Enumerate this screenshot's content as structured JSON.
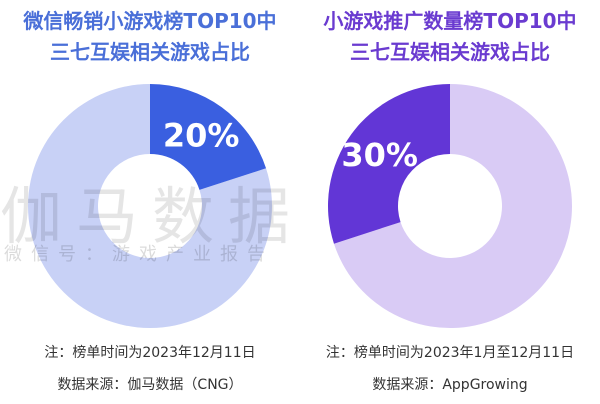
{
  "charts": [
    {
      "title_lines": [
        "微信畅销小游戏榜TOP10中",
        "三七互娱相关游戏占比"
      ],
      "title_color": "#4a6fd8",
      "note": "注：榜单时间为2023年12月11日",
      "source": "数据来源：伽马数据（CNG）",
      "value_label": "20%",
      "colors": {
        "highlight": "#3a5fe0",
        "rest": "#c8d1f6"
      }
    },
    {
      "title_lines": [
        "小游戏推广数量榜TOP10中",
        "三七互娱相关游戏占比"
      ],
      "title_color": "#6a3bd0",
      "note": "注：榜单时间为2023年1月至12月11日",
      "source": "数据来源：AppGrowing",
      "value_label": "30%",
      "colors": {
        "highlight": "#6236d6",
        "rest": "#d9cbf5"
      }
    }
  ],
  "chart_data": [
    {
      "type": "pie",
      "title": "微信畅销小游戏榜TOP10中三七互娱相关游戏占比",
      "slices": [
        {
          "label": "三七互娱相关游戏",
          "value": 20
        },
        {
          "label": "",
          "value": 80
        }
      ],
      "donut": true,
      "start": "top",
      "direction": "clockwise"
    },
    {
      "type": "pie",
      "title": "小游戏推广数量榜TOP10中三七互娱相关游戏占比",
      "slices": [
        {
          "label": "三七互娱相关游戏",
          "value": 30
        },
        {
          "label": "",
          "value": 70
        }
      ],
      "donut": true,
      "start": "top",
      "direction": "counterclockwise"
    }
  ],
  "watermark": {
    "main": "伽马数据",
    "sub": "微信号：游戏产业报告"
  }
}
